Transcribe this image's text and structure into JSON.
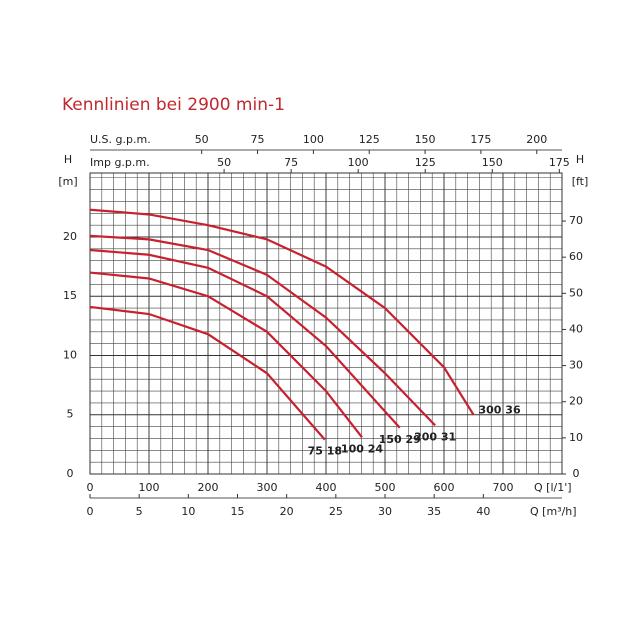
{
  "chart_data": {
    "type": "line",
    "title": "Kennlinien bei 2900 min-1",
    "x_label": "Q [l/1']",
    "xlim": [
      0,
      800
    ],
    "xticks": [
      0,
      100,
      200,
      300,
      400,
      500,
      600,
      700
    ],
    "x2_label": "Q [m³/h]",
    "x2lim": [
      0,
      48
    ],
    "x2ticks": [
      0,
      5,
      10,
      15,
      20,
      25,
      30,
      35,
      40
    ],
    "x3_label": "U.S. g.p.m.",
    "x3lim": [
      0,
      211.3
    ],
    "x3ticks": [
      50,
      75,
      100,
      125,
      150,
      175,
      200
    ],
    "x4_label": "Imp g.p.m.",
    "x4lim": [
      0,
      176
    ],
    "x4ticks": [
      50,
      75,
      100,
      125,
      150,
      175
    ],
    "y_label": "H",
    "y_unit": "[m]",
    "ylim": [
      0,
      25.4
    ],
    "yticks": [
      0,
      5,
      10,
      15,
      20
    ],
    "y2_label": "H",
    "y2_unit": "[ft]",
    "y2lim": [
      0,
      83.3
    ],
    "y2ticks": [
      0,
      10,
      20,
      30,
      40,
      50,
      60,
      70
    ],
    "grid": true,
    "color": "#c8202f",
    "series": [
      {
        "name": "75 18",
        "x": [
          0,
          100,
          200,
          300,
          398
        ],
        "values": [
          14.1,
          13.5,
          11.8,
          8.5,
          2.9
        ]
      },
      {
        "name": "100 24",
        "x": [
          0,
          100,
          200,
          300,
          400,
          461
        ],
        "values": [
          17.0,
          16.5,
          15.0,
          12.0,
          7.0,
          3.1
        ]
      },
      {
        "name": "150 29",
        "x": [
          0,
          100,
          200,
          300,
          400,
          525
        ],
        "values": [
          18.9,
          18.5,
          17.4,
          15.0,
          10.8,
          3.9
        ]
      },
      {
        "name": "200 31",
        "x": [
          0,
          100,
          200,
          300,
          400,
          500,
          585
        ],
        "values": [
          20.1,
          19.8,
          18.9,
          16.8,
          13.2,
          8.5,
          4.1
        ]
      },
      {
        "name": "300 36",
        "x": [
          0,
          100,
          200,
          300,
          400,
          500,
          600,
          650
        ],
        "values": [
          22.3,
          21.9,
          21.0,
          19.8,
          17.5,
          14.0,
          9.0,
          5.0
        ]
      }
    ]
  }
}
